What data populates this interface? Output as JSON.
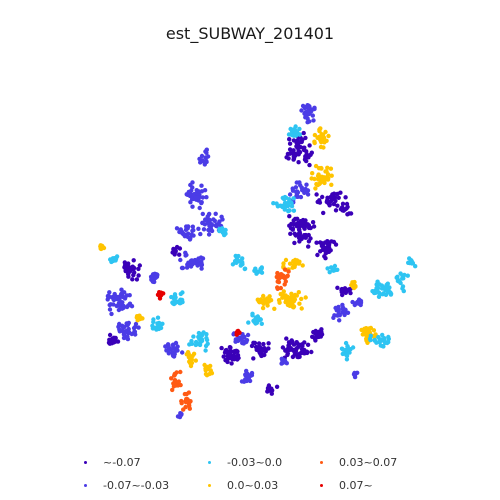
{
  "title": "est_SUBWAY_201401",
  "legend": [
    {
      "label": "~-0.07",
      "color": "#3a00b8"
    },
    {
      "label": "-0.07~-0.03",
      "color": "#4b3ce6"
    },
    {
      "label": "-0.03~0.0",
      "color": "#2ec4f2"
    },
    {
      "label": "0.0~0.03",
      "color": "#ffc400"
    },
    {
      "label": "0.03~0.07",
      "color": "#ff5a14"
    },
    {
      "label": "0.07~",
      "color": "#e60000"
    }
  ]
}
